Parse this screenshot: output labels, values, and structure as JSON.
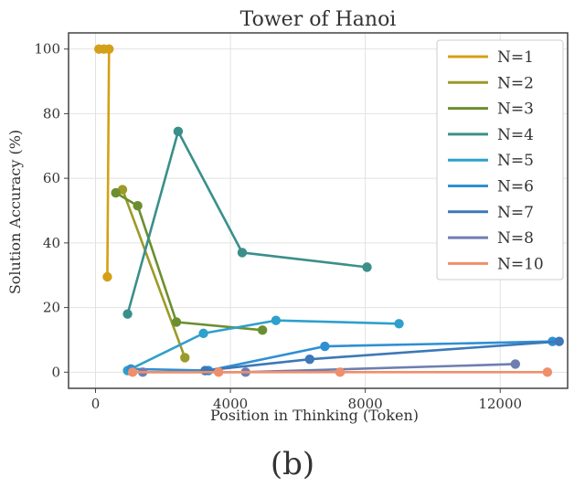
{
  "caption": "(b)",
  "chart_data": {
    "type": "line",
    "title": "Tower of Hanoi",
    "xlabel": "Position in Thinking (Token)",
    "ylabel": "Solution Accuracy (%)",
    "xlim": [
      -800,
      14000
    ],
    "ylim": [
      -5,
      105
    ],
    "xticks": [
      0,
      4000,
      8000,
      12000
    ],
    "xtick_labels": [
      "0",
      "4000",
      "8000",
      "12000"
    ],
    "yticks": [
      0,
      20,
      40,
      60,
      80,
      100
    ],
    "ytick_labels": [
      "0",
      "20",
      "40",
      "60",
      "80",
      "100"
    ],
    "grid": true,
    "legend_position": "upper-right",
    "series": [
      {
        "name": "N=1",
        "color": "#d4a017",
        "x": [
          100,
          250,
          400,
          350
        ],
        "y": [
          100,
          100,
          100,
          29.5
        ]
      },
      {
        "name": "N=2",
        "color": "#9c9a2a",
        "x": [
          800,
          2650
        ],
        "y": [
          56.5,
          4.5
        ]
      },
      {
        "name": "N=3",
        "color": "#6b8f2e",
        "x": [
          600,
          1250,
          2400,
          4950
        ],
        "y": [
          55.5,
          51.5,
          15.5,
          13
        ]
      },
      {
        "name": "N=4",
        "color": "#3a8f8a",
        "x": [
          950,
          2450,
          4350,
          8050
        ],
        "y": [
          18,
          74.5,
          37,
          32.5
        ]
      },
      {
        "name": "N=5",
        "color": "#2ea0cc",
        "x": [
          950,
          3200,
          5350,
          9000
        ],
        "y": [
          0.5,
          12,
          16,
          15
        ]
      },
      {
        "name": "N=6",
        "color": "#2f8fd4",
        "x": [
          1050,
          3350,
          6800,
          13550
        ],
        "y": [
          1,
          0.5,
          8,
          9.5
        ]
      },
      {
        "name": "N=7",
        "color": "#3d78b8",
        "x": [
          3250,
          6350,
          13750
        ],
        "y": [
          0.5,
          4,
          9.5
        ]
      },
      {
        "name": "N=8",
        "color": "#6f7eb0",
        "x": [
          1400,
          4450,
          12450
        ],
        "y": [
          0,
          0,
          2.5
        ]
      },
      {
        "name": "N=10",
        "color": "#ef8f6a",
        "x": [
          1100,
          3650,
          7250,
          13400
        ],
        "y": [
          0,
          0,
          0,
          0
        ]
      }
    ]
  }
}
